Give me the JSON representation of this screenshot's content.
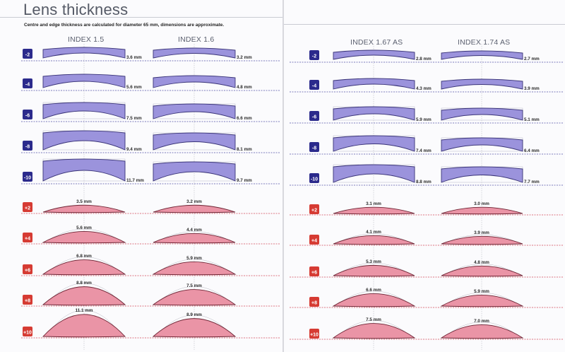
{
  "page": {
    "title": "Lens thickness",
    "subtitle": "Centre and edge thickness are calculated for diameter 65 mm, dimensions are approximate."
  },
  "colors": {
    "minus_fill": "#9b93dc",
    "minus_stroke": "#3a3478",
    "minus_badge": "#2b2a8c",
    "plus_fill": "#ea94a6",
    "plus_stroke": "#6e2434",
    "plus_badge": "#d63b33",
    "dash_minus": "#5553a8",
    "dash_plus": "#d24a5a"
  },
  "indices": [
    "INDEX 1.5",
    "INDEX 1.6",
    "INDEX 1.67 AS",
    "INDEX 1.74 AS"
  ],
  "minus_rows": [
    {
      "power": "-2",
      "thickness": [
        "3.6 mm",
        "3.2 mm",
        "2.8 mm",
        "2.7 mm"
      ]
    },
    {
      "power": "-4",
      "thickness": [
        "5.6 mm",
        "4.8 mm",
        "4.3 mm",
        "3.9 mm"
      ]
    },
    {
      "power": "-6",
      "thickness": [
        "7.5 mm",
        "6.6 mm",
        "5.9 mm",
        "5.1 mm"
      ]
    },
    {
      "power": "-8",
      "thickness": [
        "9.4 mm",
        "8.1 mm",
        "7.4 mm",
        "6.4 mm"
      ]
    },
    {
      "power": "-10",
      "thickness": [
        "11.7 mm",
        "9.7 mm",
        "8.8 mm",
        "7.7 mm"
      ]
    }
  ],
  "plus_rows": [
    {
      "power": "+2",
      "thickness": [
        "3.5 mm",
        "3.2 mm",
        "3.1 mm",
        "3.0 mm"
      ]
    },
    {
      "power": "+4",
      "thickness": [
        "5.6 mm",
        "4.4 mm",
        "4.1 mm",
        "3.9 mm"
      ]
    },
    {
      "power": "+6",
      "thickness": [
        "6.8 mm",
        "5.9 mm",
        "5.3 mm",
        "4.8 mm"
      ]
    },
    {
      "power": "+8",
      "thickness": [
        "8.8 mm",
        "7.5 mm",
        "6.6 mm",
        "5.9 mm"
      ]
    },
    {
      "power": "+10",
      "thickness": [
        "11.1 mm",
        "8.9 mm",
        "7.5 mm",
        "7.0 mm"
      ]
    }
  ]
}
